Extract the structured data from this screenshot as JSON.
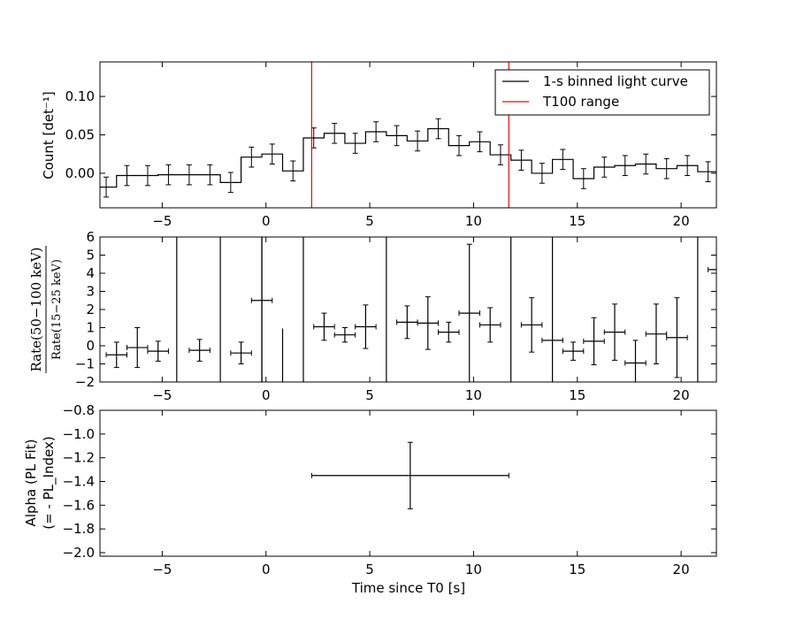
{
  "chart_data": [
    {
      "type": "line",
      "ylabel": "Count [det⁻¹]",
      "xlim": [
        -8,
        21.7
      ],
      "ylim": [
        -0.045,
        0.145
      ],
      "xticks": [
        -5,
        0,
        5,
        10,
        15,
        20
      ],
      "yticks": [
        0.0,
        0.05,
        0.1
      ],
      "ytick_labels": [
        "0.00",
        "0.05",
        "0.10"
      ],
      "legend_position": "top-right",
      "series": [
        {
          "name": "1-s binned light curve",
          "color": "#000000",
          "x": [
            -7.7,
            -6.7,
            -5.7,
            -4.7,
            -3.7,
            -2.7,
            -1.7,
            -0.7,
            0.3,
            1.3,
            2.3,
            3.3,
            4.3,
            5.3,
            6.3,
            7.3,
            8.3,
            9.3,
            10.3,
            11.3,
            12.3,
            13.3,
            14.3,
            15.3,
            16.3,
            17.3,
            18.3,
            19.3,
            20.3,
            21.3
          ],
          "y": [
            -0.018,
            -0.003,
            -0.003,
            -0.002,
            -0.002,
            -0.002,
            -0.012,
            0.021,
            0.025,
            0.003,
            0.046,
            0.052,
            0.039,
            0.054,
            0.049,
            0.042,
            0.058,
            0.036,
            0.041,
            0.024,
            0.017,
            0.0,
            0.018,
            -0.007,
            0.008,
            0.01,
            0.012,
            0.006,
            0.01,
            0.002
          ],
          "yerr": [
            0.013,
            0.013,
            0.013,
            0.013,
            0.013,
            0.013,
            0.013,
            0.013,
            0.013,
            0.013,
            0.013,
            0.013,
            0.013,
            0.013,
            0.013,
            0.013,
            0.013,
            0.013,
            0.013,
            0.013,
            0.013,
            0.013,
            0.013,
            0.013,
            0.013,
            0.013,
            0.013,
            0.013,
            0.013,
            0.013
          ]
        },
        {
          "name": "T100 range",
          "color": "#ff0000",
          "vlines": [
            2.2,
            11.7
          ]
        }
      ]
    },
    {
      "type": "scatter",
      "ylabel_numerator": "Rate(50−100 keV)",
      "ylabel_denominator": "Rate(15−25 keV)",
      "xlim": [
        -8,
        21.7
      ],
      "ylim": [
        -2,
        6
      ],
      "xticks": [
        -5,
        0,
        5,
        10,
        15,
        20
      ],
      "yticks": [
        -2,
        -1,
        0,
        1,
        2,
        3,
        4,
        5,
        6
      ],
      "points": [
        {
          "x": -7.2,
          "y": -0.5,
          "xerr": 0.5,
          "yerr": 0.7
        },
        {
          "x": -6.2,
          "y": -0.1,
          "xerr": 0.5,
          "yerr": 1.1
        },
        {
          "x": -5.2,
          "y": -0.3,
          "xerr": 0.5,
          "yerr": 0.55
        },
        {
          "x": -3.2,
          "y": -0.25,
          "xerr": 0.5,
          "yerr": 0.6
        },
        {
          "x": -1.2,
          "y": -0.4,
          "xerr": 0.5,
          "yerr": 0.6
        },
        {
          "x": -0.2,
          "y": 2.5,
          "xerr": 0.5,
          "yerr": 6.0
        },
        {
          "x": 2.8,
          "y": 1.05,
          "xerr": 0.5,
          "yerr": 0.75
        },
        {
          "x": 3.8,
          "y": 0.6,
          "xerr": 0.5,
          "yerr": 0.4
        },
        {
          "x": 4.8,
          "y": 1.05,
          "xerr": 0.5,
          "yerr": 1.2
        },
        {
          "x": 6.8,
          "y": 1.3,
          "xerr": 0.5,
          "yerr": 0.9
        },
        {
          "x": 7.8,
          "y": 1.25,
          "xerr": 0.5,
          "yerr": 1.45
        },
        {
          "x": 8.8,
          "y": 0.75,
          "xerr": 0.5,
          "yerr": 0.55
        },
        {
          "x": 9.8,
          "y": 1.8,
          "xerr": 0.5,
          "yerr": 3.8
        },
        {
          "x": 10.8,
          "y": 1.15,
          "xerr": 0.5,
          "yerr": 0.95
        },
        {
          "x": 12.8,
          "y": 1.15,
          "xerr": 0.5,
          "yerr": 1.5
        },
        {
          "x": 13.8,
          "y": 0.3,
          "xerr": 0.5,
          "yerr": 0.0
        },
        {
          "x": 14.8,
          "y": -0.3,
          "xerr": 0.5,
          "yerr": 0.5
        },
        {
          "x": 15.8,
          "y": 0.25,
          "xerr": 0.5,
          "yerr": 1.3
        },
        {
          "x": 16.8,
          "y": 0.75,
          "xerr": 0.5,
          "yerr": 1.55
        },
        {
          "x": 17.8,
          "y": -0.95,
          "xerr": 0.5,
          "yerr": 1.25
        },
        {
          "x": 18.8,
          "y": 0.65,
          "xerr": 0.5,
          "yerr": 1.65
        },
        {
          "x": 19.8,
          "y": 0.45,
          "xerr": 0.5,
          "yerr": 2.2
        },
        {
          "x": 21.7,
          "y": 4.2,
          "xerr": 0.4,
          "yerr": 0.0
        }
      ],
      "tall_lines": [
        {
          "x": -4.3,
          "y1": -2,
          "y2": 6
        },
        {
          "x": -2.2,
          "y1": -2,
          "y2": 6
        },
        {
          "x": -0.2,
          "y1": -2,
          "y2": 6
        },
        {
          "x": 0.8,
          "y1": -2,
          "y2": 0.95
        },
        {
          "x": 1.8,
          "y1": -2,
          "y2": 6
        },
        {
          "x": 5.8,
          "y1": -2,
          "y2": 6
        },
        {
          "x": 11.8,
          "y1": -2,
          "y2": 6
        },
        {
          "x": 13.8,
          "y1": -2,
          "y2": 6
        },
        {
          "x": 20.8,
          "y1": -2,
          "y2": 6
        }
      ]
    },
    {
      "type": "scatter",
      "ylabel_line1": "Alpha (PL Fit)",
      "ylabel_line2": "(= - PL_Index)",
      "xlabel": "Time since T0 [s]",
      "xlim": [
        -8,
        21.7
      ],
      "ylim": [
        -2.03,
        -0.8
      ],
      "xticks": [
        -5,
        0,
        5,
        10,
        15,
        20
      ],
      "yticks": [
        -2.0,
        -1.8,
        -1.6,
        -1.4,
        -1.2,
        -1.0,
        -0.8
      ],
      "ytick_labels": [
        "−2.0",
        "−1.8",
        "−1.6",
        "−1.4",
        "−1.2",
        "−1.0",
        "−0.8"
      ],
      "points": [
        {
          "x": 6.95,
          "y": -1.35,
          "xlo": 2.2,
          "xhi": 11.7,
          "ylo": -1.63,
          "yhi": -1.07
        }
      ]
    }
  ],
  "xtick_labels": [
    "−5",
    "0",
    "5",
    "10",
    "15",
    "20"
  ],
  "ytick_labels_mid": [
    "−2",
    "−1",
    "0",
    "1",
    "2",
    "3",
    "4",
    "5",
    "6"
  ]
}
